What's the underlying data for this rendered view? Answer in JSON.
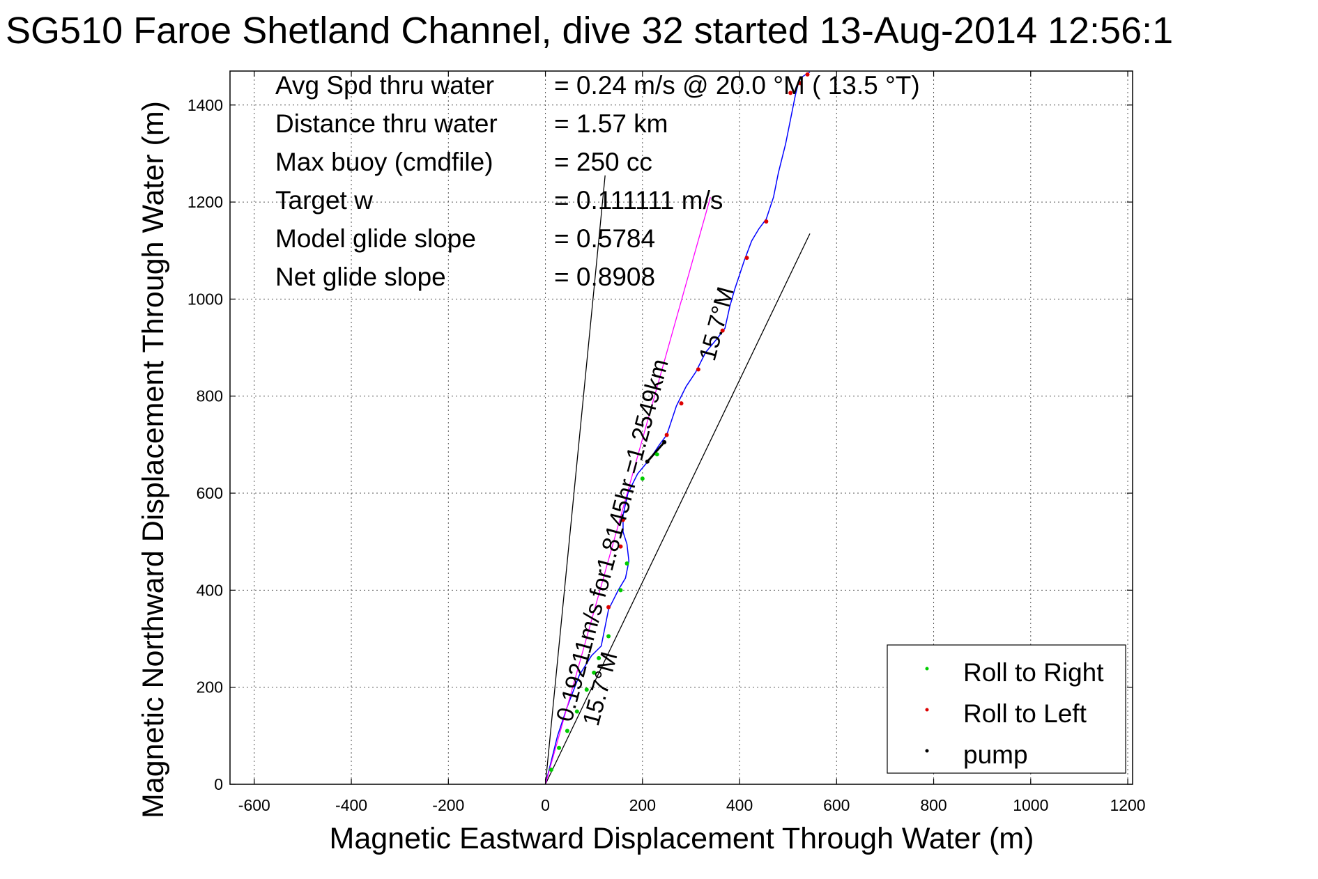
{
  "chart_data": {
    "type": "scatter",
    "title": "SG510 Faroe Shetland Channel, dive 32 started 13-Aug-2014 12:56:1",
    "xlabel": "Magnetic Eastward Displacement Through Water (m)",
    "ylabel": "Magnetic Northward Displacement Through Water (m)",
    "xlim": [
      -650,
      1210
    ],
    "ylim": [
      0,
      1470
    ],
    "xticks": [
      -600,
      -400,
      -200,
      0,
      200,
      400,
      600,
      800,
      1000,
      1200
    ],
    "yticks": [
      0,
      200,
      400,
      600,
      800,
      1000,
      1200,
      1400
    ],
    "grid": true,
    "legend_position": "bottom-right",
    "legend": [
      {
        "label": "Roll to Right",
        "color": "#00cc00"
      },
      {
        "label": "Roll to Left",
        "color": "#dd0000"
      },
      {
        "label": "pump",
        "color": "#000000"
      }
    ],
    "stats": [
      {
        "label": "Avg Spd thru water",
        "value": "=  0.24 m/s @  20.0 °M ( 13.5 °T)"
      },
      {
        "label": "Distance thru water",
        "value": "=  1.57 km"
      },
      {
        "label": "Max buoy (cmdfile)",
        "value": "= 250 cc"
      },
      {
        "label": "Target w",
        "value": "= 0.111111 m/s"
      },
      {
        "label": "Model glide slope",
        "value": "= 0.5784"
      },
      {
        "label": "Net glide slope",
        "value": "= 0.8908"
      }
    ],
    "annotations": {
      "outer_line": "15.7°M",
      "target_line": "0.19211m/s for1.8145hr =1.2549km",
      "target_line_bearing": "15.7°M"
    },
    "reference_lines": [
      {
        "name": "left-bound",
        "x": [
          0,
          123
        ],
        "y": [
          0,
          1255
        ]
      },
      {
        "name": "right-bound",
        "x": [
          0,
          545
        ],
        "y": [
          0,
          1135
        ]
      },
      {
        "name": "target-track",
        "x": [
          0,
          340
        ],
        "y": [
          0,
          1210
        ]
      }
    ],
    "series": [
      {
        "name": "track",
        "color": "#0000ff",
        "x": [
          0,
          10,
          25,
          45,
          70,
          95,
          115,
          125,
          130,
          140,
          150,
          165,
          172,
          168,
          160,
          160,
          170,
          190,
          215,
          235,
          250,
          270,
          290,
          310,
          330,
          355,
          370,
          380,
          390,
          410,
          425,
          440,
          455,
          470,
          480,
          495,
          505,
          515,
          520,
          525,
          535,
          545
        ],
        "y": [
          0,
          40,
          100,
          160,
          225,
          265,
          285,
          335,
          360,
          380,
          400,
          425,
          460,
          495,
          520,
          555,
          600,
          640,
          670,
          700,
          720,
          780,
          820,
          850,
          890,
          920,
          940,
          985,
          1020,
          1080,
          1120,
          1145,
          1165,
          1210,
          1260,
          1320,
          1370,
          1420,
          1440,
          1455,
          1462,
          1468
        ]
      },
      {
        "name": "target",
        "color": "#ff00ff",
        "x": [
          0,
          340
        ],
        "y": [
          0,
          1210
        ]
      },
      {
        "name": "Roll to Right",
        "color": "#00cc00",
        "x": [
          12,
          28,
          45,
          65,
          85,
          100,
          110,
          130,
          155,
          168,
          200,
          230
        ],
        "y": [
          30,
          75,
          110,
          150,
          195,
          230,
          260,
          305,
          400,
          455,
          630,
          680
        ]
      },
      {
        "name": "Roll to Left",
        "color": "#dd0000",
        "x": [
          130,
          155,
          160,
          250,
          280,
          315,
          365,
          415,
          455,
          505,
          525,
          540
        ],
        "y": [
          365,
          490,
          545,
          720,
          785,
          855,
          935,
          1085,
          1160,
          1425,
          1445,
          1463
        ]
      },
      {
        "name": "pump",
        "color": "#000000",
        "x": [
          210,
          245
        ],
        "y": [
          665,
          705
        ]
      }
    ]
  }
}
